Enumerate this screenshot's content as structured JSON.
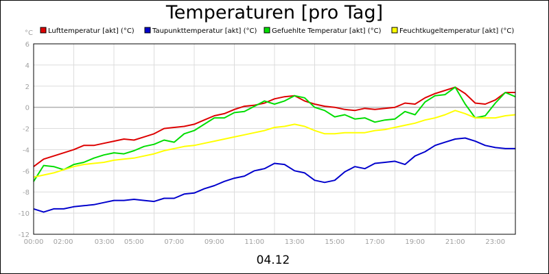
{
  "chart_data": {
    "type": "line",
    "title": "Temperaturen [pro Tag]",
    "ylabel": "°C",
    "xlabel": "04.12",
    "ylim": [
      -12,
      6
    ],
    "yticks": [
      6,
      4,
      2,
      0,
      -2,
      -4,
      -6,
      -8,
      -10,
      -12
    ],
    "xlim": [
      0,
      24
    ],
    "xticks": [
      {
        "hour": 0,
        "label": "00:00"
      },
      {
        "hour": 2,
        "label": "02:00"
      },
      {
        "hour": 3,
        "label": "03:00"
      },
      {
        "hour": 5,
        "label": "05:00"
      },
      {
        "hour": 7,
        "label": "07:00"
      },
      {
        "hour": 9,
        "label": "09:00"
      },
      {
        "hour": 11,
        "label": "11:00"
      },
      {
        "hour": 13,
        "label": "13:00"
      },
      {
        "hour": 15,
        "label": "15:00"
      },
      {
        "hour": 17,
        "label": "17:00"
      },
      {
        "hour": 19,
        "label": "19:00"
      },
      {
        "hour": 21,
        "label": "21:00"
      },
      {
        "hour": 23,
        "label": "23:00"
      }
    ],
    "grid": true,
    "series": [
      {
        "name": "Lufttemperatur [akt] (°C)",
        "color": "#dd0000",
        "x": [
          0,
          0.5,
          1,
          1.5,
          2,
          2.5,
          3,
          3.5,
          4,
          4.5,
          5,
          5.5,
          6,
          6.5,
          7,
          7.5,
          8,
          8.5,
          9,
          9.5,
          10,
          10.5,
          11,
          11.5,
          12,
          12.5,
          13,
          13.5,
          14,
          14.5,
          15,
          15.5,
          16,
          16.5,
          17,
          17.5,
          18,
          18.5,
          19,
          19.5,
          20,
          20.5,
          21,
          21.5,
          22,
          22.5,
          23,
          23.5,
          24
        ],
        "values": [
          -5.6,
          -4.9,
          -4.6,
          -4.3,
          -4.0,
          -3.6,
          -3.6,
          -3.4,
          -3.2,
          -3.0,
          -3.1,
          -2.8,
          -2.5,
          -2.0,
          -1.9,
          -1.8,
          -1.6,
          -1.2,
          -0.8,
          -0.6,
          -0.2,
          0.1,
          0.2,
          0.4,
          0.8,
          1.0,
          1.1,
          0.6,
          0.3,
          0.1,
          0.0,
          -0.2,
          -0.3,
          -0.1,
          -0.2,
          -0.1,
          0.0,
          0.4,
          0.3,
          0.9,
          1.3,
          1.6,
          1.9,
          1.3,
          0.4,
          0.3,
          0.7,
          1.4,
          1.4
        ]
      },
      {
        "name": "Taupunkttemperatur [akt] (°C)",
        "color": "#0000cc",
        "x": [
          0,
          0.5,
          1,
          1.5,
          2,
          2.5,
          3,
          3.5,
          4,
          4.5,
          5,
          5.5,
          6,
          6.5,
          7,
          7.5,
          8,
          8.5,
          9,
          9.5,
          10,
          10.5,
          11,
          11.5,
          12,
          12.5,
          13,
          13.5,
          14,
          14.5,
          15,
          15.5,
          16,
          16.5,
          17,
          17.5,
          18,
          18.5,
          19,
          19.5,
          20,
          20.5,
          21,
          21.5,
          22,
          22.5,
          23,
          23.5,
          24
        ],
        "values": [
          -9.6,
          -9.9,
          -9.6,
          -9.6,
          -9.4,
          -9.3,
          -9.2,
          -9.0,
          -8.8,
          -8.8,
          -8.7,
          -8.8,
          -8.9,
          -8.6,
          -8.6,
          -8.2,
          -8.1,
          -7.7,
          -7.4,
          -7.0,
          -6.7,
          -6.5,
          -6.0,
          -5.8,
          -5.3,
          -5.4,
          -6.0,
          -6.2,
          -6.9,
          -7.1,
          -6.9,
          -6.1,
          -5.6,
          -5.8,
          -5.3,
          -5.2,
          -5.1,
          -5.4,
          -4.6,
          -4.2,
          -3.6,
          -3.3,
          -3.0,
          -2.9,
          -3.2,
          -3.6,
          -3.8,
          -3.9,
          -3.9
        ]
      },
      {
        "name": "Gefuehlte Temperatur [akt] (°C)",
        "color": "#00dd00",
        "x": [
          0,
          0.5,
          1,
          1.5,
          2,
          2.5,
          3,
          3.5,
          4,
          4.5,
          5,
          5.5,
          6,
          6.5,
          7,
          7.5,
          8,
          8.5,
          9,
          9.5,
          10,
          10.5,
          11,
          11.5,
          12,
          12.5,
          13,
          13.5,
          14,
          14.5,
          15,
          15.5,
          16,
          16.5,
          17,
          17.5,
          18,
          18.5,
          19,
          19.5,
          20,
          20.5,
          21,
          21.5,
          22,
          22.5,
          23,
          23.5,
          24
        ],
        "values": [
          -7.0,
          -5.5,
          -5.6,
          -5.9,
          -5.4,
          -5.2,
          -4.8,
          -4.5,
          -4.3,
          -4.4,
          -4.1,
          -3.7,
          -3.5,
          -3.1,
          -3.3,
          -2.5,
          -2.2,
          -1.6,
          -1.0,
          -1.0,
          -0.5,
          -0.4,
          0.1,
          0.6,
          0.3,
          0.6,
          1.1,
          0.9,
          0.0,
          -0.3,
          -0.9,
          -0.7,
          -1.1,
          -1.0,
          -1.4,
          -1.2,
          -1.1,
          -0.4,
          -0.7,
          0.5,
          1.1,
          1.2,
          1.9,
          0.3,
          -1.0,
          -0.8,
          0.4,
          1.4,
          1.0
        ]
      },
      {
        "name": "Feuchtkugeltemperatur [akt] (°C)",
        "color": "#ffff00",
        "x": [
          0,
          0.5,
          1,
          1.5,
          2,
          2.5,
          3,
          3.5,
          4,
          4.5,
          5,
          5.5,
          6,
          6.5,
          7,
          7.5,
          8,
          8.5,
          9,
          9.5,
          10,
          10.5,
          11,
          11.5,
          12,
          12.5,
          13,
          13.5,
          14,
          14.5,
          15,
          15.5,
          16,
          16.5,
          17,
          17.5,
          18,
          18.5,
          19,
          19.5,
          20,
          20.5,
          21,
          21.5,
          22,
          22.5,
          23,
          23.5,
          24
        ],
        "values": [
          -6.6,
          -6.4,
          -6.2,
          -5.9,
          -5.6,
          -5.4,
          -5.3,
          -5.2,
          -5.0,
          -4.9,
          -4.8,
          -4.6,
          -4.4,
          -4.1,
          -3.9,
          -3.7,
          -3.6,
          -3.4,
          -3.2,
          -3.0,
          -2.8,
          -2.6,
          -2.4,
          -2.2,
          -1.9,
          -1.8,
          -1.6,
          -1.8,
          -2.2,
          -2.5,
          -2.5,
          -2.4,
          -2.4,
          -2.4,
          -2.2,
          -2.1,
          -1.9,
          -1.7,
          -1.5,
          -1.2,
          -1.0,
          -0.7,
          -0.3,
          -0.6,
          -1.0,
          -1.0,
          -1.0,
          -0.8,
          -0.7
        ]
      }
    ]
  }
}
